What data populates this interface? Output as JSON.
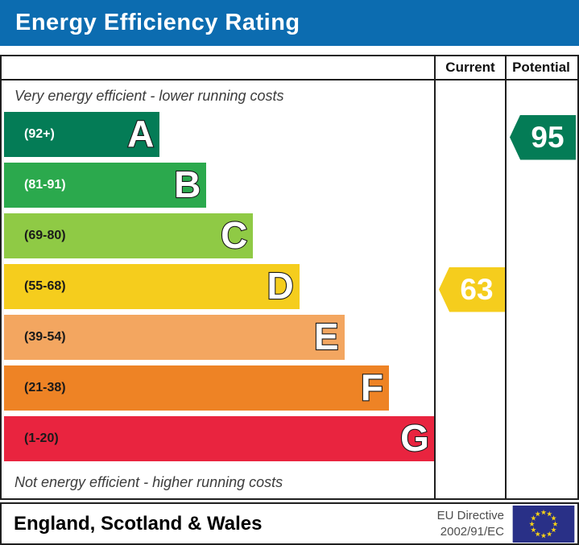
{
  "title": "Energy Efficiency Rating",
  "columns": {
    "current": "Current",
    "potential": "Potential"
  },
  "captions": {
    "top": "Very energy efficient - lower running costs",
    "bottom": "Not energy efficient - higher running costs"
  },
  "chart_data": {
    "type": "bar",
    "subtype": "epc-energy-efficiency-rating",
    "title": "Energy Efficiency Rating",
    "orientation": "horizontal",
    "bands": [
      {
        "letter": "A",
        "range": "(92+)",
        "min": 92,
        "max": 100,
        "color": "#047c56",
        "label_color": "#ffffff",
        "width_pct": 36.0
      },
      {
        "letter": "B",
        "range": "(81-91)",
        "min": 81,
        "max": 91,
        "color": "#2ba94d",
        "label_color": "#ffffff",
        "width_pct": 46.8
      },
      {
        "letter": "C",
        "range": "(69-80)",
        "min": 69,
        "max": 80,
        "color": "#8fca45",
        "label_color": "#1a1a1a",
        "width_pct": 57.6
      },
      {
        "letter": "D",
        "range": "(55-68)",
        "min": 55,
        "max": 68,
        "color": "#f5cd1d",
        "label_color": "#1a1a1a",
        "width_pct": 68.3
      },
      {
        "letter": "E",
        "range": "(39-54)",
        "min": 39,
        "max": 54,
        "color": "#f3a660",
        "label_color": "#1a1a1a",
        "width_pct": 78.7
      },
      {
        "letter": "F",
        "range": "(21-38)",
        "min": 21,
        "max": 38,
        "color": "#ee8325",
        "label_color": "#1a1a1a",
        "width_pct": 89.0
      },
      {
        "letter": "G",
        "range": "(1-20)",
        "min": 1,
        "max": 20,
        "color": "#e9243f",
        "label_color": "#1a1a1a",
        "width_pct": 99.6
      }
    ],
    "current": {
      "value": 63,
      "band": "D",
      "band_index": 3,
      "color": "#f5cd1d"
    },
    "potential": {
      "value": 95,
      "band": "A",
      "band_index": 0,
      "color": "#047c56"
    }
  },
  "footer": {
    "region": "England, Scotland & Wales",
    "directive": [
      "EU Directive",
      "2002/91/EC"
    ]
  },
  "colors": {
    "header_bar": "#0c6cb0",
    "border": "#1f1f1f",
    "eu_flag_blue": "#293087",
    "eu_star_yellow": "#f7d117"
  }
}
